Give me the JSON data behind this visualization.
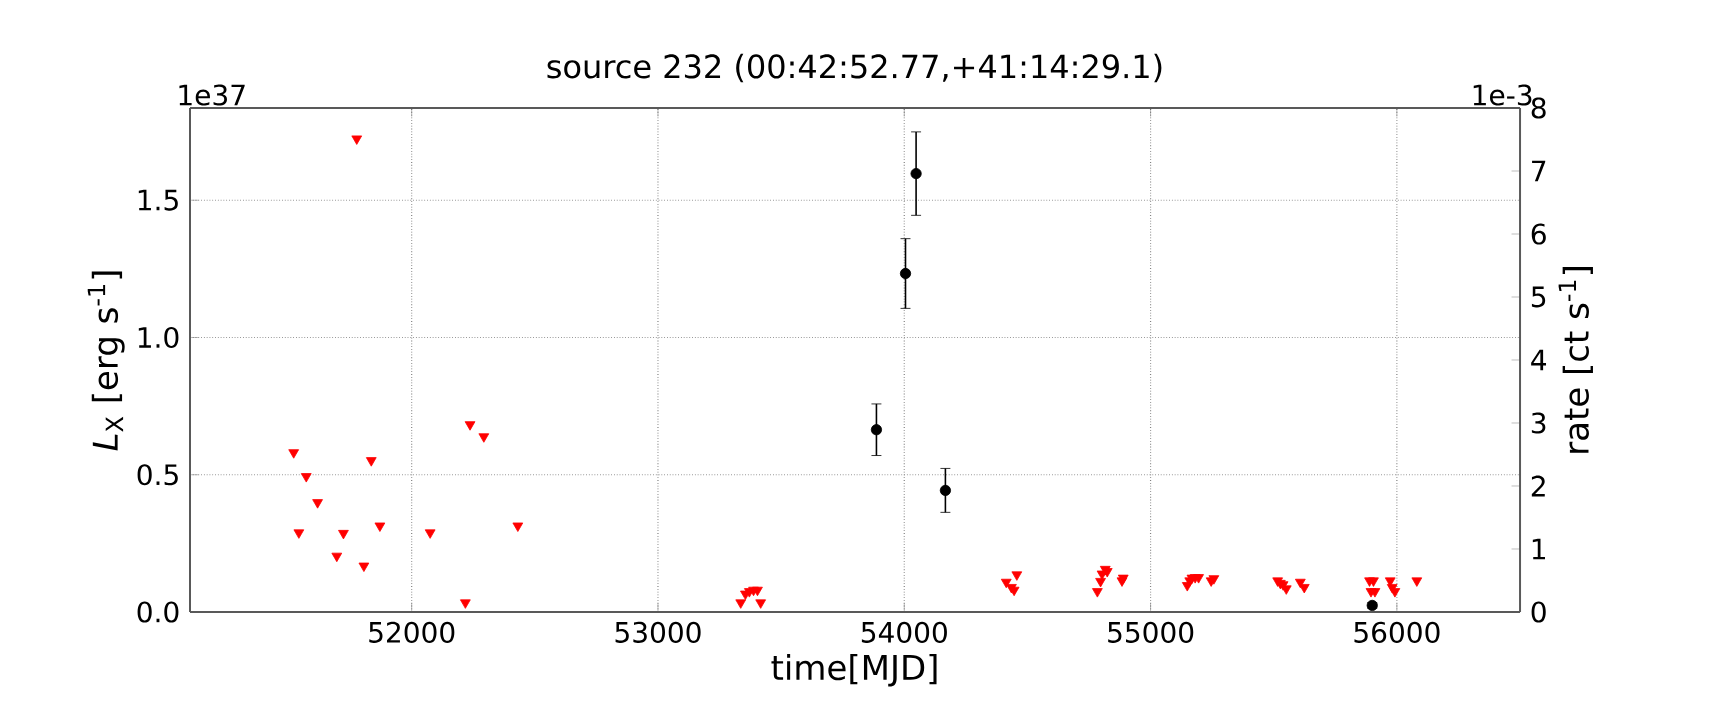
{
  "chart_data": {
    "type": "scatter",
    "title": "source 232      (00:42:52.77,+41:14:29.1)",
    "xlabel": "time[MJD]",
    "ylabel": "*L*$_{X}$ [erg s$^{-1}$]",
    "y2label": "rate [ct s$^{-1}$]",
    "annotations": [
      "1e37",
      "1e-3"
    ],
    "xlim": [
      51100,
      56500
    ],
    "xticks": [
      52000,
      53000,
      54000,
      55000,
      56000
    ],
    "ylim": [
      0,
      1.836
    ],
    "yticks": [
      {
        "value": 0,
        "label": "0.0"
      },
      {
        "value": 0.5,
        "label": "0.5"
      },
      {
        "value": 1.0,
        "label": "1.0"
      },
      {
        "value": 1.5,
        "label": "1.5"
      }
    ],
    "y2lim": [
      0,
      8
    ],
    "y2ticks": [
      0,
      1,
      2,
      3,
      4,
      5,
      6,
      7,
      8
    ],
    "grid": true,
    "series": [
      {
        "color": "#ff0000",
        "marker": "triangle",
        "x": [
          51777,
          51521,
          51572,
          51542,
          51618,
          51696,
          51723,
          51806,
          51836,
          51871,
          52075,
          52218,
          52237,
          52293,
          52431,
          53336,
          53355,
          53371,
          53388,
          53404,
          53417,
          54414,
          54435,
          54446,
          54457,
          54784,
          54797,
          54803,
          54816,
          54824,
          54884,
          54889,
          55149,
          55159,
          55168,
          55181,
          55195,
          55246,
          55257,
          55516,
          55527,
          55538,
          55551,
          55608,
          55624,
          55889,
          55895,
          55905,
          55911,
          55973,
          55981,
          55992,
          56081
        ],
        "values": [
          1.724,
          0.581,
          0.494,
          0.289,
          0.399,
          0.204,
          0.287,
          0.168,
          0.552,
          0.314,
          0.289,
          0.034,
          0.683,
          0.639,
          0.314,
          0.034,
          0.066,
          0.075,
          0.08,
          0.08,
          0.034,
          0.109,
          0.09,
          0.08,
          0.136,
          0.075,
          0.112,
          0.139,
          0.156,
          0.148,
          0.114,
          0.124,
          0.097,
          0.114,
          0.124,
          0.126,
          0.126,
          0.114,
          0.122,
          0.114,
          0.105,
          0.1,
          0.085,
          0.109,
          0.09,
          0.114,
          0.075,
          0.114,
          0.075,
          0.114,
          0.09,
          0.075,
          0.114
        ]
      },
      {
        "color": "#000000",
        "marker": "circle",
        "x": [
          53887,
          54005,
          54048,
          54167,
          55900
        ],
        "values": [
          0.664,
          1.233,
          1.597,
          0.443,
          0.024
        ],
        "errors": [
          0.094,
          0.127,
          0.152,
          0.08,
          0.01
        ]
      }
    ]
  }
}
